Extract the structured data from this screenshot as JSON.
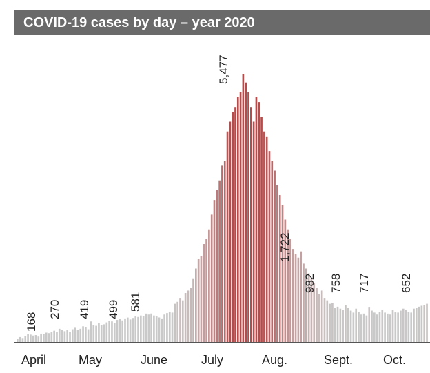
{
  "header": {
    "title": "COVID-19 cases by day – year 2020",
    "background": "#6a6a6a",
    "title_color": "#ffffff"
  },
  "chart_data": {
    "type": "bar",
    "title": "COVID-19 cases by day – year 2020",
    "xlabel": "",
    "ylabel": "",
    "ylim": [
      0,
      6000
    ],
    "grid": false,
    "legend": "none",
    "month_labels": [
      "April",
      "May",
      "June",
      "July",
      "Aug.",
      "Sept.",
      "Oct."
    ],
    "annotations": [
      {
        "label": "168",
        "value": 168
      },
      {
        "label": "270",
        "value": 270
      },
      {
        "label": "419",
        "value": 419
      },
      {
        "label": "499",
        "value": 499
      },
      {
        "label": "581",
        "value": 581
      },
      {
        "label": "5,477",
        "value": 5477
      },
      {
        "label": "1,722",
        "value": 1722
      },
      {
        "label": "982",
        "value": 982
      },
      {
        "label": "758",
        "value": 758
      },
      {
        "label": "717",
        "value": 717
      },
      {
        "label": "652",
        "value": 652
      }
    ],
    "colors": {
      "low": "#c9c9c9",
      "high": "#b84a4a",
      "axis": "#555555"
    },
    "values": [
      60,
      100,
      80,
      120,
      168,
      150,
      130,
      140,
      110,
      170,
      160,
      190,
      180,
      210,
      230,
      200,
      270,
      240,
      220,
      250,
      210,
      260,
      290,
      240,
      270,
      320,
      300,
      260,
      419,
      350,
      330,
      380,
      340,
      360,
      400,
      430,
      420,
      390,
      450,
      470,
      440,
      480,
      499,
      460,
      490,
      520,
      510,
      540,
      530,
      580,
      560,
      581,
      540,
      520,
      500,
      480,
      560,
      590,
      620,
      600,
      780,
      820,
      900,
      850,
      1000,
      1050,
      1100,
      1300,
      1500,
      1700,
      1750,
      2000,
      2100,
      2300,
      2600,
      2900,
      3100,
      3300,
      3600,
      3700,
      4300,
      4500,
      4700,
      4800,
      5000,
      5100,
      5477,
      5300,
      5100,
      4800,
      4500,
      5000,
      4900,
      4600,
      4300,
      4200,
      3900,
      3700,
      3500,
      3200,
      3000,
      2800,
      2500,
      2300,
      2100,
      1900,
      1800,
      1722,
      1850,
      1600,
      1500,
      1400,
      1300,
      1200,
      1100,
      982,
      1050,
      900,
      850,
      780,
      800,
      700,
      720,
      680,
      650,
      758,
      700,
      640,
      600,
      680,
      620,
      560,
      580,
      540,
      717,
      640,
      600,
      560,
      620,
      650,
      600,
      580,
      560,
      652,
      620,
      600,
      640,
      680,
      660,
      620,
      600,
      680,
      700,
      720,
      740,
      760,
      780
    ]
  }
}
